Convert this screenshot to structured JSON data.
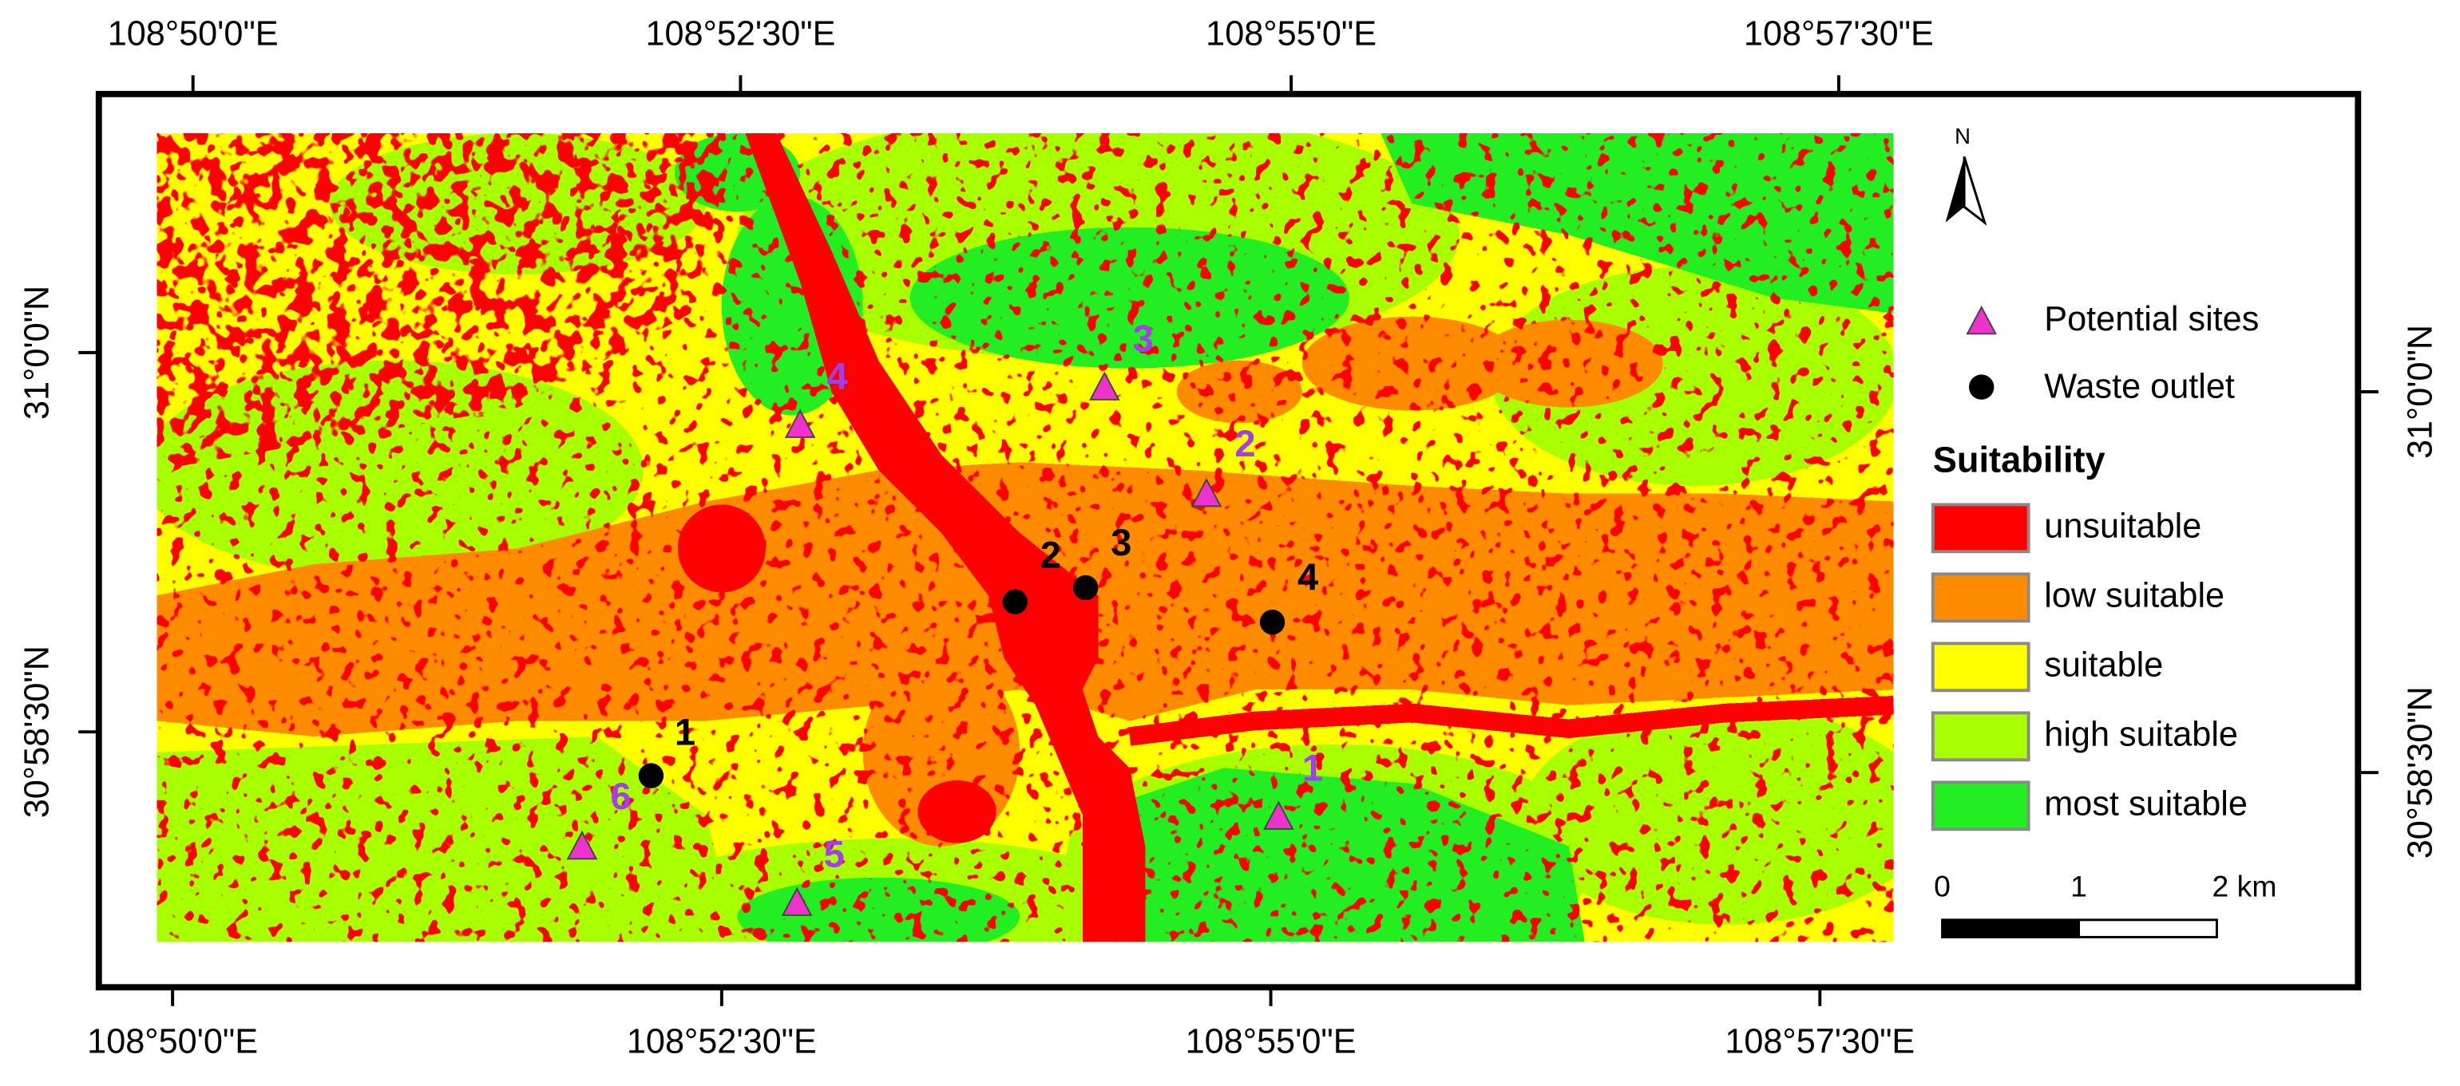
{
  "axes": {
    "top_labels": [
      "108°50'0\"E",
      "108°52'30\"E",
      "108°55'0\"E",
      "108°57'30\"E"
    ],
    "bottom_labels": [
      "108°50'0\"E",
      "108°52'30\"E",
      "108°55'0\"E",
      "108°57'30\"E"
    ],
    "left_labels": [
      "31°0'0\"N",
      "30°58'30\"N"
    ],
    "right_labels": [
      "31°0'0\"N",
      "30°58'30\"N"
    ]
  },
  "legend": {
    "north": "N",
    "potential_sites": "Potential sites",
    "waste_outlet": "Waste outlet",
    "suitability_title": "Suitability",
    "classes": [
      {
        "label": "unsuitable",
        "color": "#ff0000"
      },
      {
        "label": "low suitable",
        "color": "#ff8c00"
      },
      {
        "label": "suitable",
        "color": "#ffff00"
      },
      {
        "label": "high suitable",
        "color": "#a8ff00"
      },
      {
        "label": "most suitable",
        "color": "#22ee22"
      }
    ]
  },
  "scale_bar": {
    "labels": [
      "0",
      "1",
      "2 km"
    ]
  },
  "potential_sites": [
    {
      "label": "1"
    },
    {
      "label": "2"
    },
    {
      "label": "3"
    },
    {
      "label": "4"
    },
    {
      "label": "5"
    },
    {
      "label": "6"
    }
  ],
  "waste_outlets": [
    {
      "label": "1"
    },
    {
      "label": "2"
    },
    {
      "label": "3"
    },
    {
      "label": "4"
    }
  ]
}
